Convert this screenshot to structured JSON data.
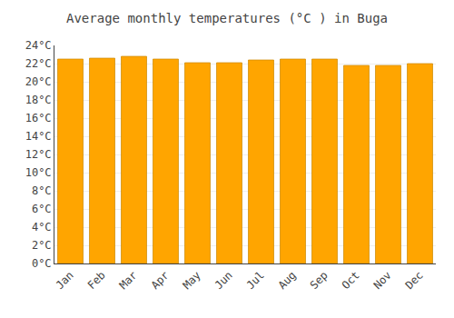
{
  "chart_data": {
    "type": "bar",
    "title": "Average monthly temperatures (°C ) in Buga",
    "categories": [
      "Jan",
      "Feb",
      "Mar",
      "Apr",
      "May",
      "Jun",
      "Jul",
      "Aug",
      "Sep",
      "Oct",
      "Nov",
      "Dec"
    ],
    "values": [
      22.5,
      22.6,
      22.8,
      22.5,
      22.1,
      22.1,
      22.4,
      22.5,
      22.5,
      21.8,
      21.8,
      22.0
    ],
    "color": "#FFA500",
    "ylim": [
      0,
      24
    ],
    "yticks": [
      {
        "value": 0,
        "label": "0°C"
      },
      {
        "value": 2,
        "label": "2°C"
      },
      {
        "value": 4,
        "label": "4°C"
      },
      {
        "value": 6,
        "label": "6°C"
      },
      {
        "value": 8,
        "label": "8°C"
      },
      {
        "value": 10,
        "label": "10°C"
      },
      {
        "value": 12,
        "label": "12°C"
      },
      {
        "value": 14,
        "label": "14°C"
      },
      {
        "value": 16,
        "label": "16°C"
      },
      {
        "value": 18,
        "label": "18°C"
      },
      {
        "value": 20,
        "label": "20°C"
      },
      {
        "value": 22,
        "label": "22°C"
      },
      {
        "value": 24,
        "label": "24°C"
      }
    ],
    "grid": true
  }
}
